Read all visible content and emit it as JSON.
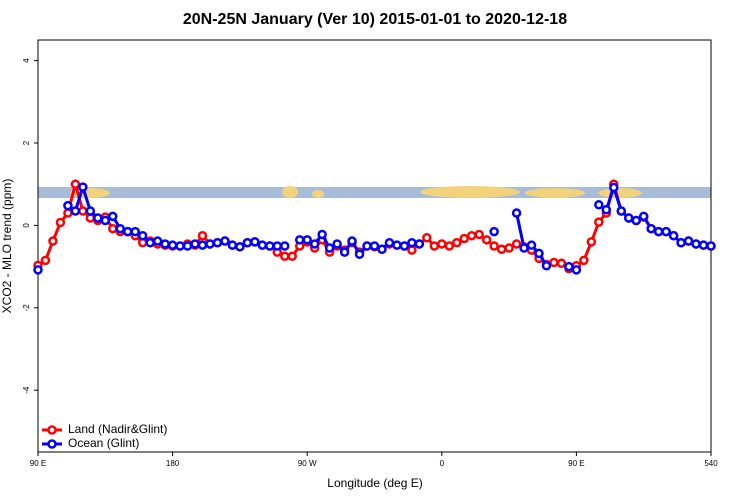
{
  "chart_data": {
    "type": "line",
    "title": "20N-25N January (Ver 10)   2015-01-01 to 2020-12-18",
    "x_label": "Longitude (deg E)",
    "y_label": "XCO2 - MLO trend (ppm)",
    "x": [
      90,
      95,
      100,
      105,
      110,
      115,
      120,
      125,
      130,
      135,
      140,
      145,
      150,
      155,
      160,
      165,
      170,
      175,
      180,
      185,
      190,
      195,
      200,
      205,
      210,
      215,
      220,
      225,
      230,
      235,
      240,
      245,
      250,
      255,
      260,
      265,
      270,
      275,
      280,
      285,
      290,
      295,
      300,
      305,
      310,
      315,
      320,
      325,
      330,
      335,
      340,
      345,
      350,
      355,
      360,
      365,
      370,
      375,
      380,
      385,
      390,
      395,
      400,
      405,
      410,
      415,
      420,
      425,
      430,
      435,
      440,
      445,
      450,
      455,
      460,
      465,
      470,
      475,
      480,
      485,
      490,
      495,
      500,
      505,
      510,
      515,
      520,
      525,
      530,
      535,
      540
    ],
    "xlim": [
      90,
      540
    ],
    "xticks": [
      {
        "value": 90,
        "label": "90 E"
      },
      180,
      {
        "value": 270,
        "label": "90 W"
      },
      {
        "value": 360,
        "label": "0"
      },
      {
        "value": 450,
        "label": "90 E"
      },
      540
    ],
    "ylim": [
      -5.5,
      4.5
    ],
    "yticks": [
      -4,
      -2,
      0,
      2,
      4
    ],
    "legend": "bottom-left",
    "series": [
      {
        "name": "Land (Nadir&Glint)",
        "color": "#ff0000",
        "values": [
          -0.97,
          -0.85,
          -0.38,
          0.07,
          0.3,
          1.0,
          0.35,
          0.18,
          0.12,
          0.2,
          -0.08,
          -0.15,
          -0.15,
          -0.25,
          -0.42,
          -0.38,
          -0.45,
          -0.48,
          -0.5,
          -0.5,
          -0.45,
          -0.48,
          -0.25,
          -0.45,
          -0.42,
          -0.38,
          -0.48,
          -0.52,
          -0.42,
          -0.4,
          -0.48,
          -0.5,
          -0.65,
          -0.75,
          -0.75,
          -0.5,
          -0.4,
          -0.55,
          -0.35,
          -0.65,
          -0.5,
          -0.6,
          -0.42,
          -0.65,
          -0.5,
          -0.52,
          -0.58,
          -0.45,
          -0.48,
          -0.5,
          -0.6,
          -0.45,
          -0.3,
          -0.5,
          -0.45,
          -0.5,
          -0.42,
          -0.32,
          -0.25,
          -0.22,
          -0.35,
          -0.5,
          -0.58,
          -0.55,
          -0.45,
          -0.52,
          -0.6,
          -0.8,
          -0.95,
          -0.9,
          -0.92,
          -1.05,
          -0.98,
          -0.85,
          -0.4,
          0.08,
          0.3,
          1.0,
          0.35,
          0.18,
          0.12,
          0.2,
          -0.08,
          -0.15,
          -0.15,
          -0.25,
          -0.42,
          -0.38,
          -0.45,
          -0.48,
          -0.5
        ]
      },
      {
        "name": "Ocean (Glint)",
        "color": "#0000ff",
        "values": [
          -1.08,
          null,
          null,
          null,
          0.48,
          0.35,
          0.93,
          0.35,
          0.18,
          0.12,
          0.22,
          -0.08,
          -0.15,
          -0.15,
          -0.25,
          -0.42,
          -0.38,
          -0.45,
          -0.48,
          -0.5,
          -0.5,
          -0.45,
          -0.48,
          -0.45,
          -0.42,
          -0.38,
          -0.48,
          -0.52,
          -0.42,
          -0.4,
          -0.48,
          -0.5,
          -0.5,
          -0.5,
          null,
          -0.35,
          -0.35,
          -0.45,
          -0.22,
          -0.55,
          -0.45,
          -0.65,
          -0.38,
          -0.7,
          -0.5,
          -0.5,
          -0.58,
          -0.42,
          -0.48,
          -0.5,
          -0.42,
          -0.45,
          null,
          null,
          null,
          null,
          null,
          null,
          null,
          null,
          null,
          -0.15,
          null,
          null,
          0.3,
          -0.55,
          -0.48,
          -0.68,
          -0.98,
          null,
          null,
          -1.0,
          -1.08,
          null,
          null,
          0.5,
          0.38,
          0.92,
          0.35,
          0.18,
          0.12,
          0.22,
          -0.08,
          -0.15,
          -0.15,
          -0.25,
          -0.42,
          -0.38,
          -0.45,
          -0.48,
          -0.5
        ]
      }
    ]
  }
}
